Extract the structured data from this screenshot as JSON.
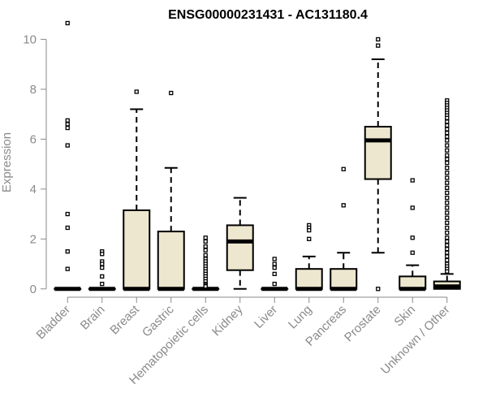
{
  "chart_data": {
    "type": "boxplot",
    "title": "ENSG00000231431 - AC131180.4",
    "xlabel": "",
    "ylabel": "Expression",
    "ylim": [
      -0.3,
      10.6
    ],
    "yticks": [
      0,
      2,
      4,
      6,
      8,
      10
    ],
    "grid": false,
    "box_color": "#ede7cf",
    "categories": [
      "Bladder",
      "Brain",
      "Breast",
      "Gastric",
      "Hematopoietic cells",
      "Kidney",
      "Liver",
      "Lung",
      "Pancreas",
      "Prostate",
      "Skin",
      "Unknown / Other"
    ],
    "boxes": [
      {
        "name": "Bladder",
        "q1": 0,
        "median": 0,
        "q3": 0,
        "whisker_low": 0,
        "whisker_high": 0,
        "outliers": [
          10.65,
          6.75,
          6.6,
          6.45,
          5.75,
          3.0,
          2.45,
          1.5,
          0.8
        ]
      },
      {
        "name": "Brain",
        "q1": 0,
        "median": 0,
        "q3": 0,
        "whisker_low": 0,
        "whisker_high": 0,
        "outliers": [
          1.5,
          1.4,
          1.1,
          1.0,
          0.85,
          0.5,
          0.2
        ]
      },
      {
        "name": "Breast",
        "q1": 0,
        "median": 0,
        "q3": 3.15,
        "whisker_low": 0,
        "whisker_high": 7.2,
        "outliers": [
          7.9
        ]
      },
      {
        "name": "Gastric",
        "q1": 0,
        "median": 0,
        "q3": 2.3,
        "whisker_low": 0,
        "whisker_high": 4.85,
        "outliers": [
          7.85
        ]
      },
      {
        "name": "Hematopoietic cells",
        "q1": 0,
        "median": 0,
        "q3": 0,
        "whisker_low": 0,
        "whisker_high": 0,
        "outliers": [
          2.05,
          1.9,
          1.7,
          1.55,
          1.35,
          1.2,
          1.1,
          1.0,
          0.9,
          0.8,
          0.7,
          0.6,
          0.5,
          0.4,
          0.3,
          0.2,
          0.15,
          0.1
        ]
      },
      {
        "name": "Kidney",
        "q1": 0.75,
        "median": 1.9,
        "q3": 2.55,
        "whisker_low": 0,
        "whisker_high": 3.65,
        "outliers": []
      },
      {
        "name": "Liver",
        "q1": 0,
        "median": 0,
        "q3": 0,
        "whisker_low": 0,
        "whisker_high": 0,
        "outliers": [
          1.2,
          1.0,
          0.85,
          0.6,
          0.2
        ]
      },
      {
        "name": "Lung",
        "q1": 0,
        "median": 0,
        "q3": 0.8,
        "whisker_low": 0,
        "whisker_high": 1.3,
        "outliers": [
          2.55,
          2.45,
          2.35,
          2.0
        ]
      },
      {
        "name": "Pancreas",
        "q1": 0,
        "median": 0,
        "q3": 0.8,
        "whisker_low": 0,
        "whisker_high": 1.45,
        "outliers": [
          4.8,
          3.35
        ]
      },
      {
        "name": "Prostate",
        "q1": 4.4,
        "median": 5.95,
        "q3": 6.5,
        "whisker_low": 1.45,
        "whisker_high": 9.2,
        "outliers": [
          10.0,
          9.75,
          0.0
        ]
      },
      {
        "name": "Skin",
        "q1": 0,
        "median": 0,
        "q3": 0.5,
        "whisker_low": 0,
        "whisker_high": 0.95,
        "outliers": [
          4.35,
          3.25,
          2.05,
          1.45
        ]
      },
      {
        "name": "Unknown / Other",
        "q1": 0,
        "median": 0.1,
        "q3": 0.3,
        "whisker_low": 0,
        "whisker_high": 0.6,
        "outliers": [
          7.55,
          7.45,
          7.35,
          7.25,
          7.15,
          7.05,
          6.95,
          6.85,
          6.7,
          6.55,
          6.4,
          6.25,
          6.1,
          5.95,
          5.75,
          5.55,
          5.35,
          5.2,
          5.05,
          4.85,
          4.65,
          4.45,
          4.25,
          4.05,
          3.85,
          3.65,
          3.45,
          3.25,
          3.05,
          2.85,
          2.65,
          2.45,
          2.25,
          2.05,
          1.9,
          1.75,
          1.6,
          1.45,
          1.3,
          1.15,
          1.0,
          0.9,
          0.8,
          0.7
        ]
      }
    ]
  }
}
